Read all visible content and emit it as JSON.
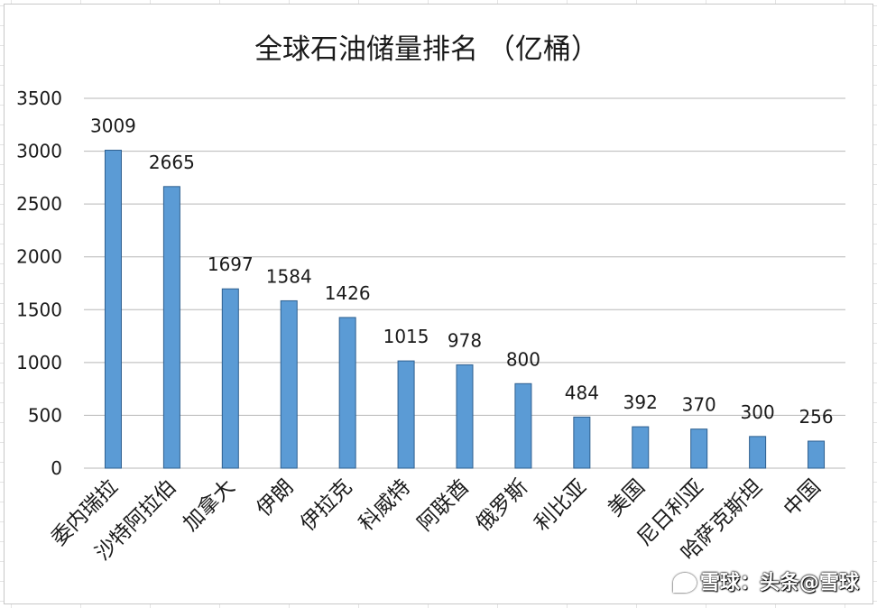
{
  "chart_data": {
    "type": "bar",
    "title": "全球石油储量排名 （亿桶）",
    "categories": [
      "委内瑞拉",
      "沙特阿拉伯",
      "加拿大",
      "伊朗",
      "伊拉克",
      "科威特",
      "阿联酋",
      "俄罗斯",
      "利比亚",
      "美国",
      "尼日利亚",
      "哈萨克斯坦",
      "中国"
    ],
    "values": [
      3009,
      2665,
      1697,
      1584,
      1426,
      1015,
      978,
      800,
      484,
      392,
      370,
      300,
      256
    ],
    "ylim": [
      0,
      3500
    ],
    "yticks": [
      0,
      500,
      1000,
      1500,
      2000,
      2500,
      3000,
      3500
    ],
    "grid": true,
    "data_labels": true,
    "bar_color": "#5b9bd5"
  },
  "watermark": {
    "text": "雪球：头条@雪球",
    "logo": "xueqiu-logo"
  }
}
